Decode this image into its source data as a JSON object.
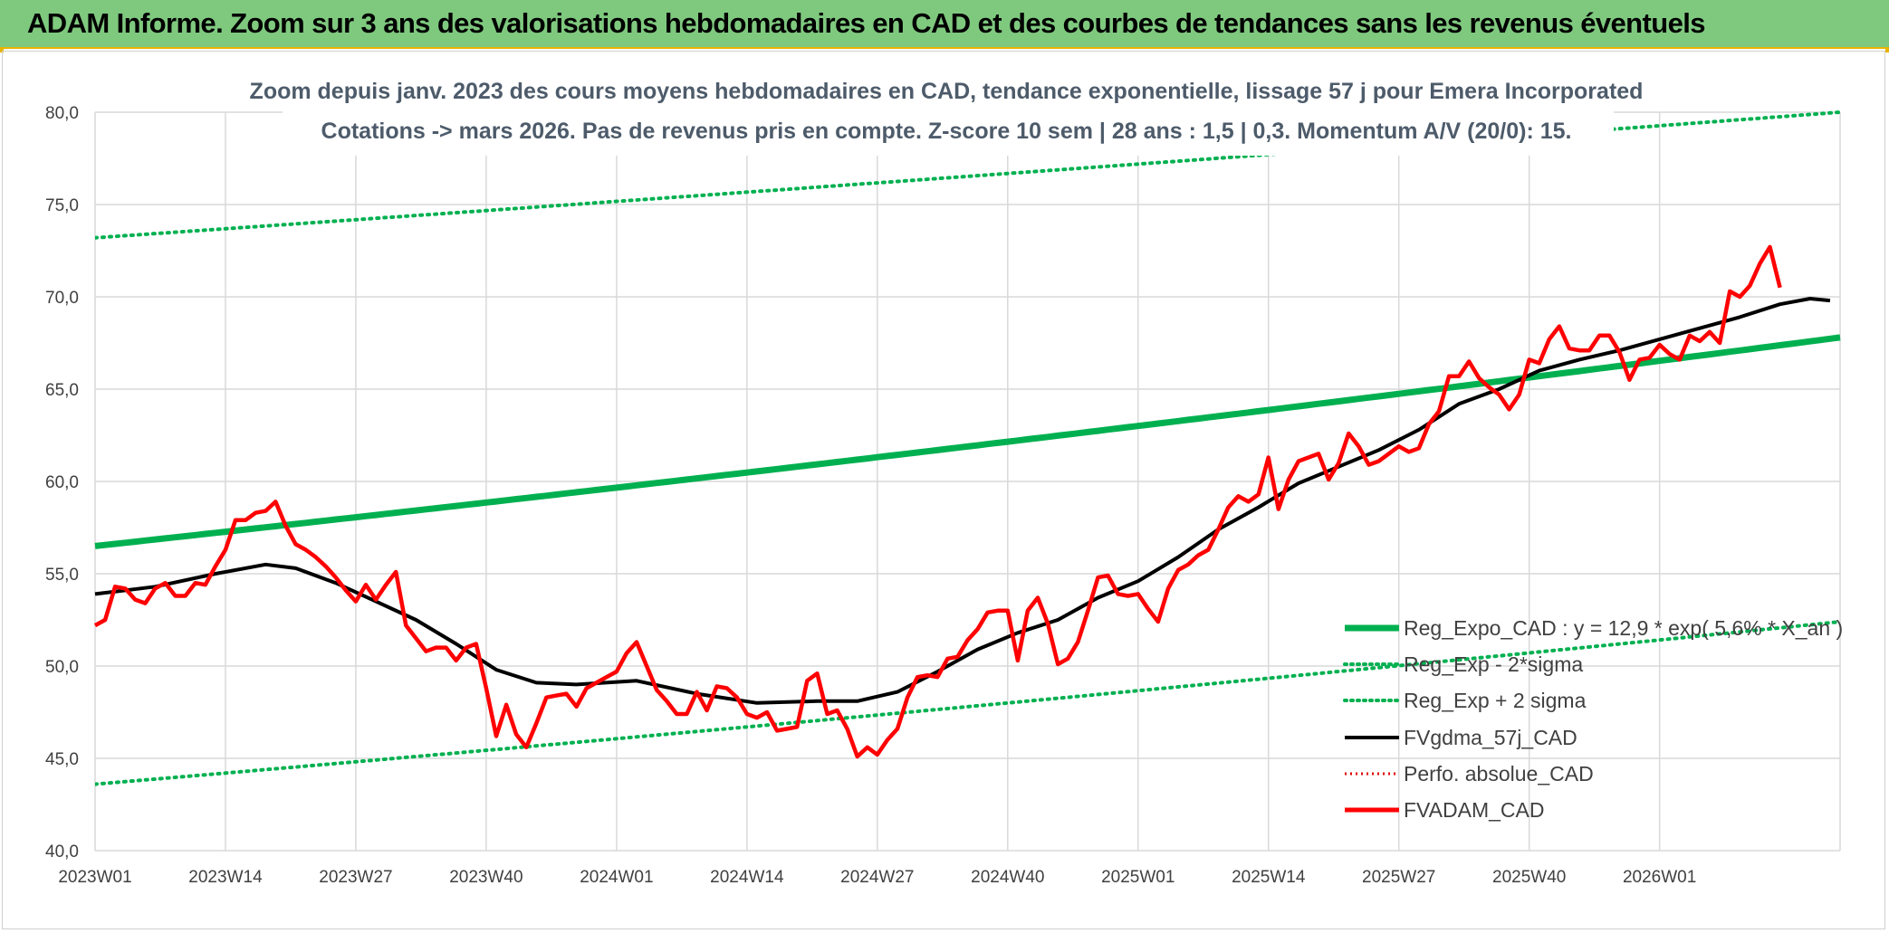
{
  "header": {
    "title": "ADAM Informe. Zoom sur 3 ans des valorisations hebdomadaires en CAD et des courbes de tendances sans les revenus éventuels"
  },
  "chart_data": {
    "type": "line",
    "title_lines": [
      "Zoom depuis janv. 2023 des cours moyens hebdomadaires en CAD, tendance exponentielle, lissage 57 j pour Emera Incorporated",
      "Cotations -> mars 2026. Pas de revenus pris en compte. Z-score 10 sem | 28 ans : 1,5 | 0,3. Momentum A/V (20/0): 15."
    ],
    "ylim": [
      40,
      80
    ],
    "y_ticks": [
      "40,0",
      "45,0",
      "50,0",
      "55,0",
      "60,0",
      "65,0",
      "70,0",
      "75,0",
      "80,0"
    ],
    "x_ticks": [
      "2023W01",
      "2023W14",
      "2023W27",
      "2023W40",
      "2024W01",
      "2024W14",
      "2024W27",
      "2024W40",
      "2025W01",
      "2025W14",
      "2025W27",
      "2025W40",
      "2026W01"
    ],
    "x_tick_index": [
      0,
      13,
      26,
      39,
      52,
      65,
      78,
      91,
      104,
      117,
      130,
      143,
      156
    ],
    "n_weeks": 174,
    "grid": true,
    "legend_position": "bottom-right",
    "colors": {
      "reg": "#00b050",
      "fvg": "#000000",
      "perfo": "#e00000",
      "adam": "#ff0000",
      "grid": "#d9d9d9"
    },
    "series": [
      {
        "key": "reg",
        "name": "Reg_Expo_CAD : y = 12,9 * exp( 5,6% * X_an )",
        "style": "thick",
        "start": 56.5,
        "end": 67.8
      },
      {
        "key": "low",
        "name": "Reg_Exp - 2*sigma",
        "style": "dotted",
        "start": 43.6,
        "end": 52.4
      },
      {
        "key": "high",
        "name": "Reg_Exp + 2 sigma",
        "style": "dotted",
        "start": 73.2,
        "end": 80.0
      },
      {
        "key": "fvg",
        "name": "FVgdma_57j_CAD",
        "style": "solid",
        "points": [
          [
            0,
            53.9
          ],
          [
            6,
            54.3
          ],
          [
            12,
            55.0
          ],
          [
            17,
            55.5
          ],
          [
            20,
            55.3
          ],
          [
            24,
            54.5
          ],
          [
            28,
            53.5
          ],
          [
            32,
            52.5
          ],
          [
            36,
            51.2
          ],
          [
            40,
            49.8
          ],
          [
            44,
            49.1
          ],
          [
            48,
            49.0
          ],
          [
            54,
            49.2
          ],
          [
            60,
            48.5
          ],
          [
            66,
            48.0
          ],
          [
            72,
            48.1
          ],
          [
            76,
            48.1
          ],
          [
            80,
            48.6
          ],
          [
            84,
            49.7
          ],
          [
            88,
            50.9
          ],
          [
            92,
            51.8
          ],
          [
            96,
            52.5
          ],
          [
            100,
            53.7
          ],
          [
            104,
            54.6
          ],
          [
            108,
            55.9
          ],
          [
            112,
            57.4
          ],
          [
            116,
            58.6
          ],
          [
            120,
            59.9
          ],
          [
            124,
            60.8
          ],
          [
            128,
            61.7
          ],
          [
            132,
            62.8
          ],
          [
            136,
            64.2
          ],
          [
            140,
            65.0
          ],
          [
            144,
            66.0
          ],
          [
            148,
            66.6
          ],
          [
            152,
            67.1
          ],
          [
            156,
            67.7
          ],
          [
            160,
            68.3
          ],
          [
            164,
            68.9
          ],
          [
            168,
            69.6
          ],
          [
            171,
            69.9
          ],
          [
            173,
            69.8
          ]
        ]
      },
      {
        "key": "perfo",
        "name": "Perfo. absolue_CAD",
        "style": "dotted-red"
      },
      {
        "key": "adam",
        "name": "FVADAM_CAD",
        "style": "thick-red",
        "points": [
          [
            0,
            52.2
          ],
          [
            1,
            52.5
          ],
          [
            2,
            54.3
          ],
          [
            3,
            54.2
          ],
          [
            4,
            53.6
          ],
          [
            5,
            53.4
          ],
          [
            6,
            54.2
          ],
          [
            7,
            54.5
          ],
          [
            8,
            53.8
          ],
          [
            9,
            53.8
          ],
          [
            10,
            54.5
          ],
          [
            11,
            54.4
          ],
          [
            12,
            55.4
          ],
          [
            13,
            56.3
          ],
          [
            14,
            57.9
          ],
          [
            15,
            57.9
          ],
          [
            16,
            58.3
          ],
          [
            17,
            58.4
          ],
          [
            18,
            58.9
          ],
          [
            19,
            57.6
          ],
          [
            20,
            56.6
          ],
          [
            21,
            56.3
          ],
          [
            22,
            55.9
          ],
          [
            23,
            55.4
          ],
          [
            24,
            54.8
          ],
          [
            25,
            54.1
          ],
          [
            26,
            53.5
          ],
          [
            27,
            54.4
          ],
          [
            28,
            53.6
          ],
          [
            29,
            54.4
          ],
          [
            30,
            55.1
          ],
          [
            31,
            52.2
          ],
          [
            32,
            51.5
          ],
          [
            33,
            50.8
          ],
          [
            34,
            51.0
          ],
          [
            35,
            51.0
          ],
          [
            36,
            50.3
          ],
          [
            37,
            51.0
          ],
          [
            38,
            51.2
          ],
          [
            39,
            48.8
          ],
          [
            40,
            46.2
          ],
          [
            41,
            47.9
          ],
          [
            42,
            46.3
          ],
          [
            43,
            45.6
          ],
          [
            44,
            46.9
          ],
          [
            45,
            48.3
          ],
          [
            46,
            48.4
          ],
          [
            47,
            48.5
          ],
          [
            48,
            47.8
          ],
          [
            49,
            48.8
          ],
          [
            50,
            49.1
          ],
          [
            51,
            49.4
          ],
          [
            52,
            49.7
          ],
          [
            53,
            50.7
          ],
          [
            54,
            51.3
          ],
          [
            55,
            50.0
          ],
          [
            56,
            48.7
          ],
          [
            57,
            48.1
          ],
          [
            58,
            47.4
          ],
          [
            59,
            47.4
          ],
          [
            60,
            48.6
          ],
          [
            61,
            47.6
          ],
          [
            62,
            48.9
          ],
          [
            63,
            48.8
          ],
          [
            64,
            48.3
          ],
          [
            65,
            47.4
          ],
          [
            66,
            47.2
          ],
          [
            67,
            47.5
          ],
          [
            68,
            46.5
          ],
          [
            69,
            46.6
          ],
          [
            70,
            46.7
          ],
          [
            71,
            49.2
          ],
          [
            72,
            49.6
          ],
          [
            73,
            47.4
          ],
          [
            74,
            47.6
          ],
          [
            75,
            46.6
          ],
          [
            76,
            45.1
          ],
          [
            77,
            45.6
          ],
          [
            78,
            45.2
          ],
          [
            79,
            46.0
          ],
          [
            80,
            46.6
          ],
          [
            81,
            48.3
          ],
          [
            82,
            49.4
          ],
          [
            83,
            49.5
          ],
          [
            84,
            49.4
          ],
          [
            85,
            50.4
          ],
          [
            86,
            50.5
          ],
          [
            87,
            51.4
          ],
          [
            88,
            52.0
          ],
          [
            89,
            52.9
          ],
          [
            90,
            53.0
          ],
          [
            91,
            53.0
          ],
          [
            92,
            50.3
          ],
          [
            93,
            53.0
          ],
          [
            94,
            53.7
          ],
          [
            95,
            52.3
          ],
          [
            96,
            50.1
          ],
          [
            97,
            50.4
          ],
          [
            98,
            51.3
          ],
          [
            99,
            53.0
          ],
          [
            100,
            54.8
          ],
          [
            101,
            54.9
          ],
          [
            102,
            53.9
          ],
          [
            103,
            53.8
          ],
          [
            104,
            53.9
          ],
          [
            105,
            53.1
          ],
          [
            106,
            52.4
          ],
          [
            107,
            54.2
          ],
          [
            108,
            55.2
          ],
          [
            109,
            55.5
          ],
          [
            110,
            56.0
          ],
          [
            111,
            56.3
          ],
          [
            112,
            57.4
          ],
          [
            113,
            58.6
          ],
          [
            114,
            59.2
          ],
          [
            115,
            58.9
          ],
          [
            116,
            59.3
          ],
          [
            117,
            61.3
          ],
          [
            118,
            58.5
          ],
          [
            119,
            60.1
          ],
          [
            120,
            61.1
          ],
          [
            121,
            61.3
          ],
          [
            122,
            61.5
          ],
          [
            123,
            60.1
          ],
          [
            124,
            61.0
          ],
          [
            125,
            62.6
          ],
          [
            126,
            61.9
          ],
          [
            127,
            60.9
          ],
          [
            128,
            61.1
          ],
          [
            129,
            61.5
          ],
          [
            130,
            61.9
          ],
          [
            131,
            61.6
          ],
          [
            132,
            61.8
          ],
          [
            133,
            63.1
          ],
          [
            134,
            63.8
          ],
          [
            135,
            65.7
          ],
          [
            136,
            65.7
          ],
          [
            137,
            66.5
          ],
          [
            138,
            65.6
          ],
          [
            139,
            65.1
          ],
          [
            140,
            64.7
          ],
          [
            141,
            63.9
          ],
          [
            142,
            64.7
          ],
          [
            143,
            66.6
          ],
          [
            144,
            66.4
          ],
          [
            145,
            67.7
          ],
          [
            146,
            68.4
          ],
          [
            147,
            67.2
          ],
          [
            148,
            67.1
          ],
          [
            149,
            67.1
          ],
          [
            150,
            67.9
          ],
          [
            151,
            67.9
          ],
          [
            152,
            67.0
          ],
          [
            153,
            65.5
          ],
          [
            154,
            66.6
          ],
          [
            155,
            66.7
          ],
          [
            156,
            67.4
          ],
          [
            157,
            66.9
          ],
          [
            158,
            66.6
          ],
          [
            159,
            67.9
          ],
          [
            160,
            67.6
          ],
          [
            161,
            68.1
          ],
          [
            162,
            67.5
          ],
          [
            163,
            70.3
          ],
          [
            164,
            70.0
          ],
          [
            165,
            70.6
          ],
          [
            166,
            71.8
          ],
          [
            167,
            72.7
          ],
          [
            168,
            70.5
          ]
        ]
      }
    ]
  }
}
